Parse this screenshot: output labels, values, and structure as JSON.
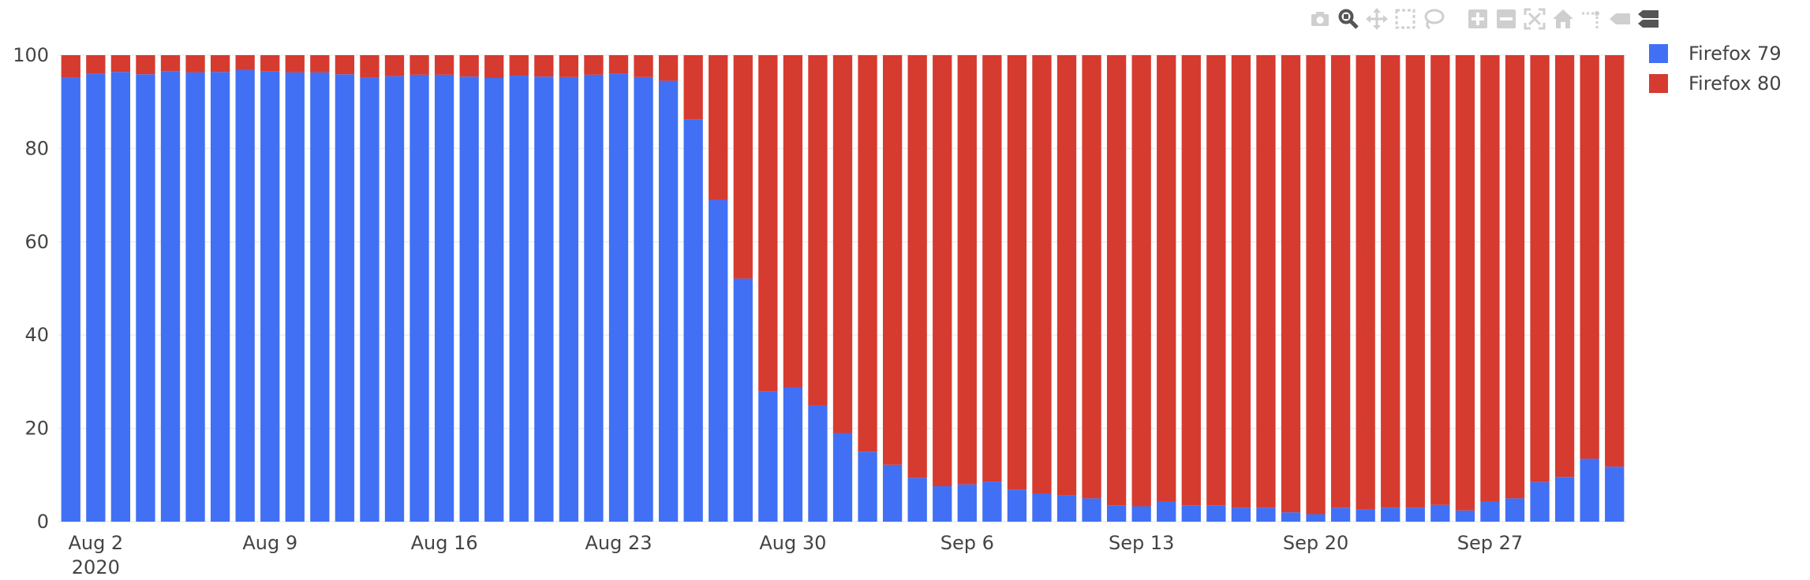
{
  "colors": {
    "firefox79": "#4170f5",
    "firefox80": "#d63b30",
    "grid": "#eeeeee",
    "text": "#444444",
    "modebar": "#cfcfcf"
  },
  "modebar": {
    "buttons": [
      {
        "name": "camera-icon"
      },
      {
        "name": "zoom-icon",
        "active": true
      },
      {
        "name": "pan-icon"
      },
      {
        "name": "box-select-icon"
      },
      {
        "name": "lasso-select-icon"
      },
      {
        "name": "zoom-in-icon"
      },
      {
        "name": "zoom-out-icon"
      },
      {
        "name": "autoscale-icon"
      },
      {
        "name": "reset-axes-icon"
      },
      {
        "name": "spike-lines-icon"
      },
      {
        "name": "hover-closest-icon"
      },
      {
        "name": "hover-compare-icon"
      }
    ]
  },
  "chart_data": {
    "type": "bar",
    "barmode": "stack",
    "x_start": "2020-08-01",
    "x_step_days": 1,
    "x_tick_labels": [
      "Aug 2",
      "Aug 9",
      "Aug 16",
      "Aug 23",
      "Aug 30",
      "Sep 6",
      "Sep 13",
      "Sep 20",
      "Sep 27"
    ],
    "x_tick_index": [
      1,
      8,
      15,
      22,
      29,
      36,
      43,
      50,
      57
    ],
    "x_year_label": "2020",
    "ylim": [
      0,
      100
    ],
    "y_ticks": [
      0,
      20,
      40,
      60,
      80,
      100
    ],
    "grid": true,
    "legend_placement": "top-right",
    "series": [
      {
        "name": "Firefox 79",
        "color": "#4170f5",
        "values": [
          95.2,
          96.0,
          96.4,
          95.9,
          96.6,
          96.3,
          96.4,
          96.8,
          96.5,
          96.3,
          96.3,
          95.9,
          95.2,
          95.5,
          95.8,
          95.8,
          95.4,
          95.1,
          95.6,
          95.4,
          95.3,
          95.8,
          96.1,
          95.3,
          94.5,
          86.2,
          69.0,
          52.1,
          27.9,
          28.8,
          25.0,
          19.0,
          15.0,
          12.2,
          9.4,
          7.6,
          8.0,
          8.6,
          6.9,
          6.0,
          5.6,
          5.0,
          3.5,
          3.3,
          4.3,
          3.5,
          3.5,
          3.0,
          3.0,
          2.0,
          1.6,
          3.0,
          2.6,
          3.0,
          3.0,
          3.6,
          2.4,
          4.3,
          5.0,
          8.5,
          9.6,
          13.5,
          11.8
        ]
      },
      {
        "name": "Firefox 80",
        "color": "#d63b30",
        "values": [
          4.8,
          4.0,
          3.6,
          4.1,
          3.4,
          3.7,
          3.6,
          3.2,
          3.5,
          3.7,
          3.7,
          4.1,
          4.8,
          4.5,
          4.2,
          4.2,
          4.6,
          4.9,
          4.4,
          4.6,
          4.7,
          4.2,
          3.9,
          4.7,
          5.5,
          13.8,
          31.0,
          47.9,
          72.1,
          71.2,
          75.0,
          81.0,
          85.0,
          87.8,
          90.6,
          92.4,
          92.0,
          91.4,
          93.1,
          94.0,
          94.4,
          95.0,
          96.5,
          96.7,
          95.7,
          96.5,
          96.5,
          97.0,
          97.0,
          98.0,
          98.4,
          97.0,
          97.4,
          97.0,
          97.0,
          96.4,
          97.6,
          95.7,
          95.0,
          91.5,
          90.4,
          86.5,
          88.2
        ]
      }
    ]
  }
}
